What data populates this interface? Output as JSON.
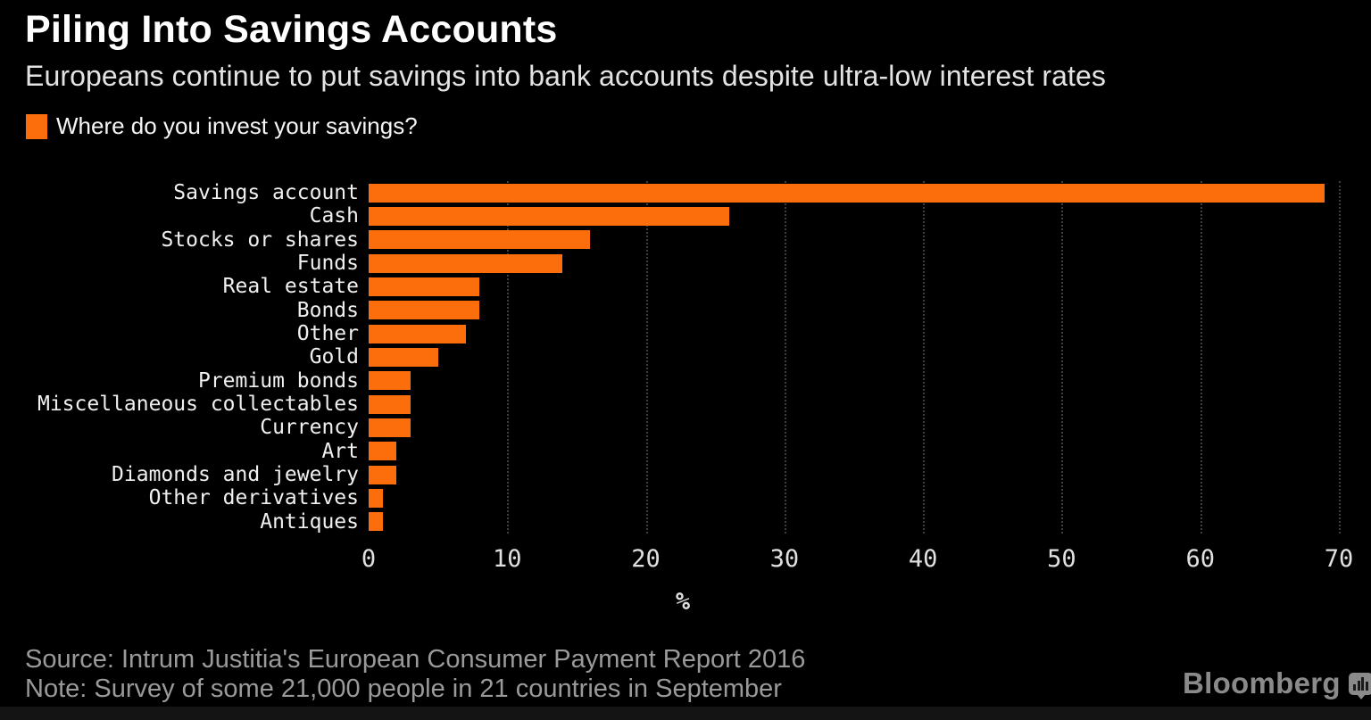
{
  "header": {
    "title": "Piling Into Savings Accounts",
    "subtitle": "Europeans continue to put savings into bank accounts despite ultra-low interest rates"
  },
  "legend": {
    "label": "Where do you invest your savings?"
  },
  "chart_data": {
    "type": "bar",
    "orientation": "horizontal",
    "title": "Where do you invest your savings?",
    "categories": [
      "Savings account",
      "Cash",
      "Stocks or shares",
      "Funds",
      "Real estate",
      "Bonds",
      "Other",
      "Gold",
      "Premium bonds",
      "Miscellaneous collectables",
      "Currency",
      "Art",
      "Diamonds and jewelry",
      "Other derivatives",
      "Antiques"
    ],
    "values": [
      69,
      26,
      16,
      14,
      8,
      8,
      7,
      5,
      3,
      3,
      3,
      2,
      2,
      1,
      1
    ],
    "xlabel": "%",
    "ylabel": "",
    "xlim": [
      0,
      70
    ],
    "xticks": [
      0,
      10,
      20,
      30,
      40,
      50,
      60,
      70
    ],
    "grid": "vertical-dotted",
    "legend_position": "top-left"
  },
  "footer": {
    "source": "Source: Intrum Justitia's European Consumer Payment Report 2016",
    "note": "Note: Survey of some 21,000 people in 21 countries in September"
  },
  "branding": {
    "logo_text": "Bloomberg",
    "logo_icon": "bar-chart-speech-bubble-icon"
  },
  "colors": {
    "background": "#000000",
    "bar": "#fc6d0c",
    "title_text": "#ffffff",
    "subtitle_text": "#e3e3e3",
    "category_text": "#f0f0f0",
    "axis_text": "#e0e0e0",
    "gridline": "#3e3e3e",
    "footer_text": "#9a9a9a",
    "logo": "#8a8a8a"
  }
}
